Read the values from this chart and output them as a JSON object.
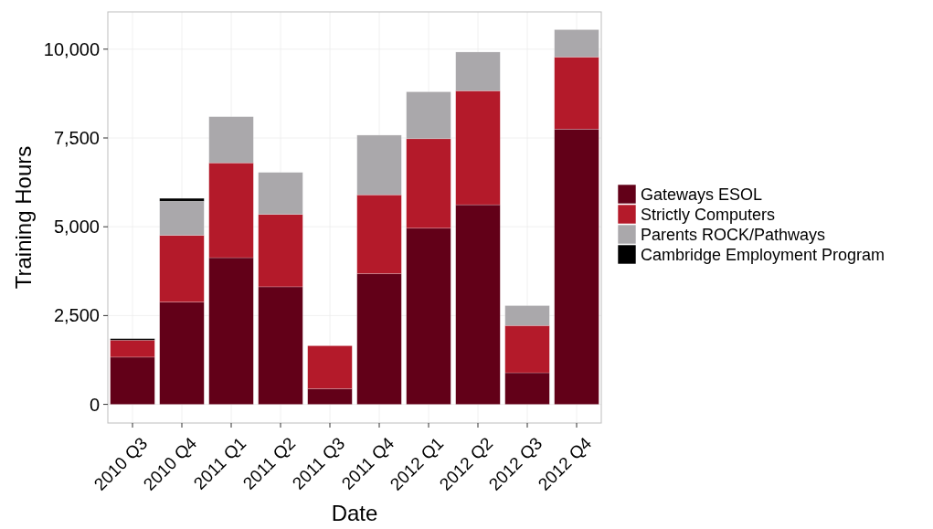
{
  "chart_data": {
    "type": "bar",
    "stacked": true,
    "xlabel": "Date",
    "ylabel": "Training Hours",
    "categories": [
      "2010 Q3",
      "2010 Q4",
      "2011 Q1",
      "2011 Q2",
      "2011 Q3",
      "2011 Q4",
      "2012 Q1",
      "2012 Q2",
      "2012 Q3",
      "2012 Q4"
    ],
    "series": [
      {
        "name": "Gateways ESOL",
        "color": "#620018",
        "values": [
          1330,
          2880,
          4130,
          3310,
          440,
          3680,
          4960,
          5620,
          890,
          7750
        ]
      },
      {
        "name": "Strictly Computers",
        "color": "#b41a2a",
        "values": [
          480,
          1880,
          2670,
          2040,
          1210,
          2220,
          2520,
          3210,
          1330,
          2030
        ]
      },
      {
        "name": "Parents ROCK/Pathways",
        "color": "#aaa8ab",
        "values": [
          null,
          960,
          1300,
          1180,
          null,
          1680,
          1320,
          1090,
          560,
          770
        ]
      },
      {
        "name": "Cambridge Employment Program",
        "color": "#000000",
        "values": [
          40,
          80,
          null,
          null,
          null,
          null,
          null,
          null,
          null,
          null
        ]
      }
    ],
    "ylim": [
      -525,
      11050
    ],
    "yticks": [
      {
        "value": 0,
        "label": "0"
      },
      {
        "value": 2500,
        "label": "2,500"
      },
      {
        "value": 5000,
        "label": "5,000"
      },
      {
        "value": 7500,
        "label": "7,500"
      },
      {
        "value": 10000,
        "label": "10,000"
      }
    ],
    "grid": true,
    "legend": "right"
  }
}
